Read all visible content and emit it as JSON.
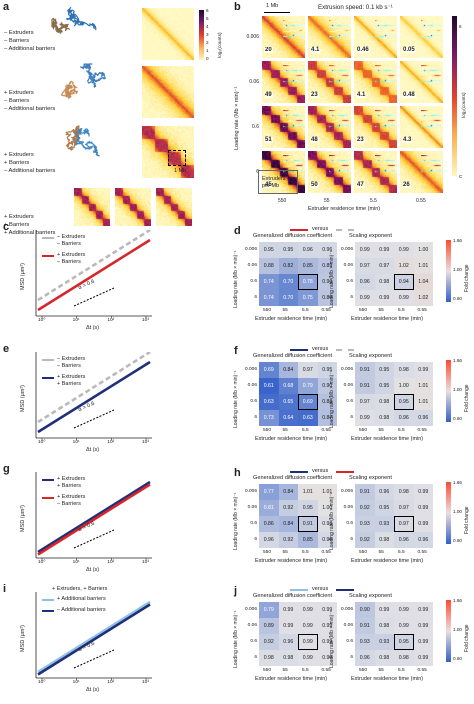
{
  "panels": {
    "a": {
      "label": "a",
      "conditions": [
        [
          "– Extruders",
          "– Barriers",
          "– Additional barriers"
        ],
        [
          "+ Extruders",
          "– Barriers",
          "– Additional barriers"
        ],
        [
          "+ Extruders",
          "+ Barriers",
          "– Additional barriers"
        ],
        [
          "+ Extruders",
          "+ Barriers",
          "+ Additional barriers"
        ]
      ],
      "colorbar_ticks": [
        "6",
        "5",
        "4",
        "3",
        "2",
        "1",
        "0"
      ],
      "colorbar_label": "log₂(counts)",
      "scale_label": "1 Mb"
    },
    "b": {
      "label": "b",
      "title": "Extrusion speed: 0.1 kb s⁻¹",
      "scale_label": "1 Mb",
      "inner_scale": "1 kb s⁻¹",
      "ylabel": "Loading rate (Mb × min)⁻¹",
      "xlabel": "Extruder residence time (min)",
      "row_ticks": [
        "0.006",
        "0.06",
        "0.6",
        "6"
      ],
      "col_ticks": [
        "550",
        "55",
        "5.5",
        "0.55"
      ],
      "extruders_label": [
        "Extruders",
        "per Mb"
      ],
      "extruders_counts": [
        [
          "20",
          "4.1",
          "0.46",
          "0.05"
        ],
        [
          "49",
          "23",
          "4.1",
          "0.48"
        ],
        [
          "51",
          "48",
          "23",
          "4.3"
        ],
        [
          "45",
          "50",
          "47",
          "26"
        ]
      ],
      "colorbar_label": "log₂(counts)",
      "colorbar_ticks": [
        "6",
        "C"
      ]
    },
    "c": {
      "label": "c",
      "ylabel": "MSD (μm²)",
      "xlabel": "Δt (s)",
      "legend": [
        {
          "text": [
            "– Extruders",
            "– Barriers"
          ],
          "color": "#b9b9b9",
          "dashed": true
        },
        {
          "text": [
            "+ Extruders",
            "– Barriers"
          ],
          "color": "#d7262b",
          "dashed": false
        }
      ],
      "alpha": "α = 0.6",
      "xticks": [
        "10⁰",
        "10¹",
        "10²",
        "10³"
      ]
    },
    "e": {
      "label": "e",
      "ylabel": "MSD (μm²)",
      "xlabel": "Δt (s)",
      "legend": [
        {
          "text": [
            "– Extruders",
            "– Barriers"
          ],
          "color": "#b9b9b9",
          "dashed": true
        },
        {
          "text": [
            "+ Extruders",
            "+ Barriers"
          ],
          "color": "#1f2f7a",
          "dashed": false
        }
      ],
      "alpha": "α = 0.6",
      "xticks": [
        "10⁰",
        "10¹",
        "10²",
        "10³"
      ]
    },
    "g": {
      "label": "g",
      "ylabel": "MSD (μm²)",
      "xlabel": "Δt (s)",
      "legend": [
        {
          "text": [
            "+ Extruders",
            "+ Barriers"
          ],
          "color": "#1f2f7a",
          "dashed": false
        },
        {
          "text": [
            "+ Extruders",
            "– Barriers"
          ],
          "color": "#d7262b",
          "dashed": false
        }
      ],
      "alpha": "α = 0.6",
      "xticks": [
        "10⁰",
        "10¹",
        "10²",
        "10³"
      ]
    },
    "i": {
      "label": "i",
      "ylabel": "MSD (μm²)",
      "xlabel": "Δt (s)",
      "header": "+ Extruders, + Barriers",
      "legend": [
        {
          "text": [
            "+ Additional barriers"
          ],
          "color": "#8fc1e6",
          "dashed": false
        },
        {
          "text": [
            "– Additional barriers"
          ],
          "color": "#1f2f7a",
          "dashed": false
        }
      ],
      "alpha": "α = 0.6",
      "xticks": [
        "10⁰",
        "10¹",
        "10²",
        "10³"
      ]
    }
  },
  "heatmaps": {
    "shared": {
      "ylabel": "Loading rate (Mb × min)⁻¹",
      "xlabel": "Extruder residence time (min)",
      "row_ticks": [
        "0.006",
        "0.06",
        "0.6",
        "6"
      ],
      "col_ticks": [
        "550",
        "55",
        "5.5",
        "0.55"
      ],
      "left_title": "Generalized diffusion coefficient",
      "right_title": "Scaling exponent",
      "colorbar_label": "Fold change",
      "colorbar_ticks": [
        "1.66",
        "1.00",
        "0.60"
      ],
      "versus": "versus"
    },
    "d": {
      "label": "d",
      "compare": [
        "#d7262b",
        "#b9b9b9"
      ],
      "left": [
        [
          "0.95",
          "0.95",
          "0.96",
          "0.96"
        ],
        [
          "0.88",
          "0.82",
          "0.85",
          "0.89"
        ],
        [
          "0.74",
          "0.70",
          "0.78",
          "0.90"
        ],
        [
          "0.74",
          "0.70",
          "0.75",
          "0.89"
        ]
      ],
      "right": [
        [
          "0.99",
          "0.99",
          "0.99",
          "1.00"
        ],
        [
          "0.97",
          "0.97",
          "1.02",
          "1.01"
        ],
        [
          "0.96",
          "0.98",
          "0.94",
          "1.04"
        ],
        [
          "0.99",
          "0.99",
          "0.99",
          "1.02"
        ]
      ],
      "highlight": [
        2,
        2
      ]
    },
    "f": {
      "label": "f",
      "compare": [
        "#1f2f7a",
        "#b9b9b9"
      ],
      "left": [
        [
          "0.69",
          "0.84",
          "0.97",
          "0.95"
        ],
        [
          "0.61",
          "0.68",
          "0.79",
          "0.90"
        ],
        [
          "0.63",
          "0.65",
          "0.69",
          "0.88"
        ],
        [
          "0.73",
          "0.64",
          "0.63",
          "0.87"
        ]
      ],
      "right": [
        [
          "0.91",
          "0.95",
          "0.98",
          "0.99"
        ],
        [
          "0.91",
          "0.95",
          "1.00",
          "1.01"
        ],
        [
          "0.97",
          "0.98",
          "0.95",
          "1.01"
        ],
        [
          "0.99",
          "0.98",
          "0.96",
          "0.96"
        ]
      ],
      "highlight": [
        2,
        2
      ]
    },
    "h": {
      "label": "h",
      "compare": [
        "#1f2f7a",
        "#d7262b"
      ],
      "left": [
        [
          "0.77",
          "0.84",
          "1.01",
          "1.01"
        ],
        [
          "0.81",
          "0.92",
          "0.95",
          "1.00"
        ],
        [
          "0.86",
          "0.84",
          "0.91",
          "0.98"
        ],
        [
          "0.96",
          "0.92",
          "0.85",
          "0.96"
        ]
      ],
      "right": [
        [
          "0.91",
          "0.96",
          "0.98",
          "0.99"
        ],
        [
          "0.92",
          "0.95",
          "0.97",
          "0.99"
        ],
        [
          "0.93",
          "0.93",
          "0.97",
          "0.99"
        ],
        [
          "0.92",
          "0.98",
          "0.96",
          "0.96"
        ]
      ],
      "highlight": [
        2,
        2
      ]
    },
    "j": {
      "label": "j",
      "compare": [
        "#8fc1e6",
        "#1f2f7a"
      ],
      "left": [
        [
          "0.79",
          "0.99",
          "0.99",
          "0.99"
        ],
        [
          "0.89",
          "0.99",
          "0.99",
          "0.99"
        ],
        [
          "0.92",
          "0.96",
          "0.99",
          "0.99"
        ],
        [
          "0.98",
          "0.98",
          "0.99",
          "0.99"
        ]
      ],
      "right": [
        [
          "0.90",
          "0.99",
          "0.99",
          "0.99"
        ],
        [
          "0.91",
          "0.98",
          "0.99",
          "0.99"
        ],
        [
          "0.93",
          "0.93",
          "0.95",
          "0.99"
        ],
        [
          "0.96",
          "0.98",
          "0.98",
          "0.99"
        ]
      ],
      "highlight": [
        2,
        2
      ]
    }
  }
}
